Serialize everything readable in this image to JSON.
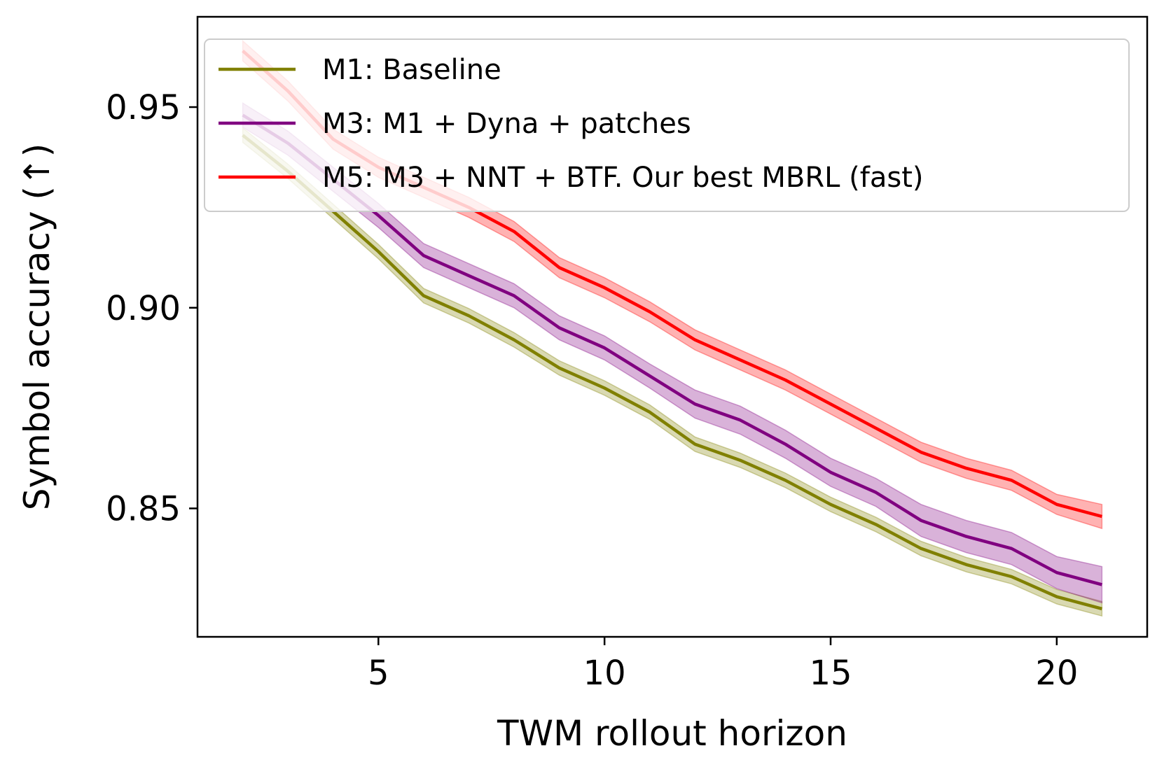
{
  "chart_data": {
    "type": "line",
    "title": "",
    "xlabel": "TWM rollout horizon",
    "ylabel": "Symbol accuracy (↑)",
    "xlim": [
      1,
      22
    ],
    "ylim": [
      0.818,
      0.9725
    ],
    "xticks": [
      5,
      10,
      15,
      20
    ],
    "xtick_labels": [
      "5",
      "10",
      "15",
      "20"
    ],
    "yticks": [
      0.85,
      0.9,
      0.95
    ],
    "ytick_labels": [
      "0.85",
      "0.90",
      "0.95"
    ],
    "grid": false,
    "legend_position": "top",
    "x": [
      2,
      3,
      4,
      5,
      6,
      7,
      8,
      9,
      10,
      11,
      12,
      13,
      14,
      15,
      16,
      17,
      18,
      19,
      20,
      21
    ],
    "series": [
      {
        "name": "M1: Baseline",
        "color": "#808000",
        "values": [
          0.943,
          0.934,
          0.924,
          0.914,
          0.903,
          0.898,
          0.892,
          0.885,
          0.88,
          0.874,
          0.866,
          0.862,
          0.857,
          0.851,
          0.846,
          0.84,
          0.836,
          0.833,
          0.828,
          0.825
        ],
        "band": [
          0.0018,
          0.0018,
          0.0018,
          0.0018,
          0.0018,
          0.0018,
          0.0018,
          0.0018,
          0.0018,
          0.0018,
          0.0018,
          0.0018,
          0.0018,
          0.0018,
          0.0018,
          0.0018,
          0.0018,
          0.0018,
          0.0018,
          0.0018
        ]
      },
      {
        "name": "M3: M1 + Dyna + patches",
        "color": "#800080",
        "values": [
          0.948,
          0.941,
          0.932,
          0.923,
          0.913,
          0.908,
          0.903,
          0.895,
          0.89,
          0.883,
          0.876,
          0.872,
          0.866,
          0.859,
          0.854,
          0.847,
          0.843,
          0.84,
          0.834,
          0.831
        ],
        "band": [
          0.003,
          0.003,
          0.003,
          0.003,
          0.003,
          0.003,
          0.003,
          0.003,
          0.003,
          0.003,
          0.0035,
          0.0035,
          0.0035,
          0.0035,
          0.0035,
          0.004,
          0.004,
          0.004,
          0.004,
          0.0045
        ]
      },
      {
        "name": "M5: M3 + NNT + BTF. Our best MBRL (fast)",
        "color": "#ff0000",
        "values": [
          0.964,
          0.954,
          0.942,
          0.935,
          0.93,
          0.925,
          0.919,
          0.91,
          0.905,
          0.899,
          0.892,
          0.887,
          0.882,
          0.876,
          0.87,
          0.864,
          0.86,
          0.857,
          0.851,
          0.848
        ],
        "band": [
          0.0025,
          0.0025,
          0.0025,
          0.0025,
          0.0025,
          0.0025,
          0.0025,
          0.0025,
          0.0025,
          0.0025,
          0.0025,
          0.0025,
          0.0025,
          0.0025,
          0.0025,
          0.0025,
          0.0025,
          0.0025,
          0.0025,
          0.003
        ]
      }
    ]
  }
}
